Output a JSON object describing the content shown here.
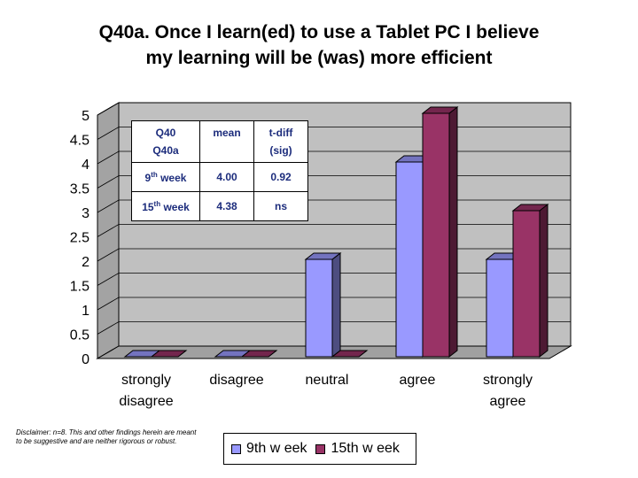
{
  "chart_data": {
    "type": "bar",
    "title": "Q40a. Once I learn(ed) to use a Tablet PC I believe my learning will be (was) more efficient",
    "title_lines": [
      "Q40a. Once I learn(ed) to use a Tablet PC I believe",
      "my learning will be (was) more efficient"
    ],
    "categories": [
      "strongly disagree",
      "disagree",
      "neutral",
      "agree",
      "strongly agree"
    ],
    "category_lines": [
      [
        "strongly",
        "disagree"
      ],
      [
        "disagree"
      ],
      [
        "neutral"
      ],
      [
        "agree"
      ],
      [
        "strongly",
        "agree"
      ]
    ],
    "series": [
      {
        "name": "9th w eek",
        "values": [
          0,
          0,
          2,
          4,
          2
        ],
        "color": "#9999ff"
      },
      {
        "name": "15th w eek",
        "values": [
          0,
          0,
          0,
          5,
          3
        ],
        "color": "#993366"
      }
    ],
    "ylim": [
      0,
      5
    ],
    "yticks": [
      "0",
      "0.5",
      "1",
      "1.5",
      "2",
      "2.5",
      "3",
      "3.5",
      "4",
      "4.5",
      "5"
    ],
    "grid": true,
    "legend_position": "bottom",
    "xlabel": "",
    "ylabel": ""
  },
  "stats_table": {
    "header": {
      "c1_line1": "Q40",
      "c1_line2": "Q40a",
      "c2": "mean",
      "c3_line1": "t-diff",
      "c3_line2": "(sig)"
    },
    "rows": [
      {
        "week_num": "9",
        "week_sup": "th",
        "week_word": " week",
        "mean": "4.00",
        "tdiff": "0.92"
      },
      {
        "week_num": "15",
        "week_sup": "th",
        "week_word": " week",
        "mean": "4.38",
        "tdiff": "ns"
      }
    ]
  },
  "disclaimer": "Disclaimer:  n=8.  This and other findings herein are meant to be suggestive and are neither rigorous or robust.",
  "colors": {
    "wall": "#c0c0c0",
    "floor": "#a0a0a0",
    "series1": "#9999ff",
    "series2": "#993366"
  }
}
